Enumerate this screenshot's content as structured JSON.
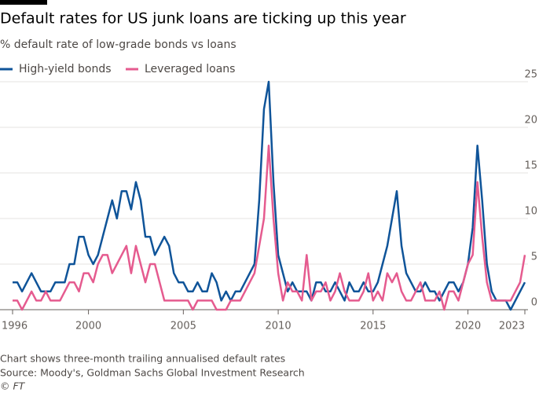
{
  "chart_data": {
    "type": "line",
    "title": "Default rates for US junk loans are ticking up this year",
    "subtitle": "% default rate of low-grade bonds vs loans",
    "notes": [
      "Chart shows three-month trailing annualised default rates",
      "Source: Moody's, Goldman Sachs Global Investment Research",
      "© FT"
    ],
    "x": [
      1996,
      1996.25,
      1996.5,
      1996.75,
      1997,
      1997.25,
      1997.5,
      1997.75,
      1998,
      1998.25,
      1998.5,
      1998.75,
      1999,
      1999.25,
      1999.5,
      1999.75,
      2000,
      2000.25,
      2000.5,
      2000.75,
      2001,
      2001.25,
      2001.5,
      2001.75,
      2002,
      2002.25,
      2002.5,
      2002.75,
      2003,
      2003.25,
      2003.5,
      2003.75,
      2004,
      2004.25,
      2004.5,
      2004.75,
      2005,
      2005.25,
      2005.5,
      2005.75,
      2006,
      2006.25,
      2006.5,
      2006.75,
      2007,
      2007.25,
      2007.5,
      2007.75,
      2008,
      2008.25,
      2008.5,
      2008.75,
      2009,
      2009.25,
      2009.5,
      2009.75,
      2010,
      2010.25,
      2010.5,
      2010.75,
      2011,
      2011.25,
      2011.5,
      2011.75,
      2012,
      2012.25,
      2012.5,
      2012.75,
      2013,
      2013.25,
      2013.5,
      2013.75,
      2014,
      2014.25,
      2014.5,
      2014.75,
      2015,
      2015.25,
      2015.5,
      2015.75,
      2016,
      2016.25,
      2016.5,
      2016.75,
      2017,
      2017.25,
      2017.5,
      2017.75,
      2018,
      2018.25,
      2018.5,
      2018.75,
      2019,
      2019.25,
      2019.5,
      2019.75,
      2020,
      2020.25,
      2020.5,
      2020.75,
      2021,
      2021.25,
      2021.5,
      2021.75,
      2022,
      2022.25,
      2022.5,
      2022.75,
      2023
    ],
    "series": [
      {
        "name": "High-yield bonds",
        "color": "#0f5499",
        "values": [
          3,
          3,
          2,
          3,
          4,
          3,
          2,
          2,
          2,
          3,
          3,
          3,
          5,
          5,
          8,
          8,
          6,
          5,
          6,
          8,
          10,
          12,
          10,
          13,
          13,
          11,
          14,
          12,
          8,
          8,
          6,
          7,
          8,
          7,
          4,
          3,
          3,
          2,
          2,
          3,
          2,
          2,
          4,
          3,
          1,
          2,
          1,
          2,
          2,
          3,
          4,
          5,
          12,
          22,
          25,
          14,
          6,
          4,
          2,
          3,
          2,
          2,
          2,
          1,
          3,
          3,
          2,
          2,
          3,
          2,
          1,
          3,
          2,
          2,
          3,
          2,
          2,
          3,
          5,
          7,
          10,
          13,
          7,
          4,
          3,
          2,
          2,
          3,
          2,
          2,
          1,
          2,
          3,
          3,
          2,
          3,
          5,
          9,
          18,
          12,
          5,
          2,
          1,
          1,
          1,
          0,
          1,
          2,
          3
        ]
      },
      {
        "name": "Leveraged loans",
        "color": "#e55b8f",
        "values": [
          1,
          1,
          0,
          1,
          2,
          1,
          1,
          2,
          1,
          1,
          1,
          2,
          3,
          3,
          2,
          4,
          4,
          3,
          5,
          6,
          6,
          4,
          5,
          6,
          7,
          4,
          7,
          5,
          3,
          5,
          5,
          3,
          1,
          1,
          1,
          1,
          1,
          1,
          0,
          1,
          1,
          1,
          1,
          0,
          0,
          0,
          1,
          1,
          1,
          2,
          3,
          4,
          7,
          10,
          18,
          10,
          4,
          1,
          3,
          2,
          2,
          1,
          6,
          1,
          2,
          2,
          3,
          1,
          2,
          4,
          2,
          1,
          1,
          1,
          2,
          4,
          1,
          2,
          1,
          4,
          3,
          4,
          2,
          1,
          1,
          2,
          3,
          1,
          1,
          1,
          2,
          0,
          2,
          2,
          1,
          3,
          5,
          6,
          14,
          8,
          3,
          1,
          1,
          1,
          1,
          1,
          2,
          3,
          6
        ]
      }
    ],
    "xlim": [
      1996,
      2023
    ],
    "xticks": [
      1996,
      2000,
      2005,
      2010,
      2015,
      2020,
      2023
    ],
    "ylim": [
      0,
      25
    ],
    "yticks": [
      0,
      5,
      10,
      15,
      20,
      25
    ],
    "grid": true,
    "legend": "top-left"
  }
}
